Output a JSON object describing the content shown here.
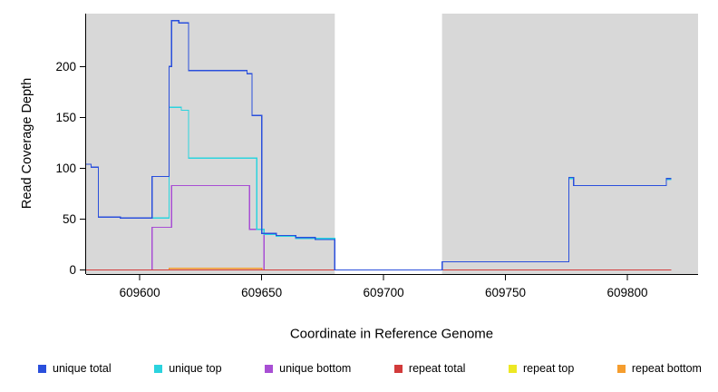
{
  "chart_data": {
    "type": "line",
    "title": "",
    "xlabel": "Coordinate in Reference Genome",
    "ylabel": "Read Coverage Depth",
    "plot_background": "#d8d8d8",
    "figure_background": "#ffffff",
    "axis_color": "#000000",
    "xlim": [
      609578,
      609829
    ],
    "ylim": [
      -4,
      252
    ],
    "xticks": [
      609600,
      609650,
      609700,
      609750,
      609800
    ],
    "yticks": [
      0,
      50,
      100,
      150,
      200
    ],
    "grid": "off",
    "legend_position": "bottom",
    "gap_region": {
      "x0": 609680,
      "x1": 609724,
      "color": "#ffffff"
    },
    "draw_order": [
      4,
      5,
      2,
      3,
      1,
      0
    ],
    "series": [
      {
        "name": "unique total",
        "color": "#2a4fdc",
        "points": [
          [
            609578,
            104
          ],
          [
            609580,
            104
          ],
          [
            609580,
            101
          ],
          [
            609583,
            101
          ],
          [
            609583,
            52
          ],
          [
            609592,
            52
          ],
          [
            609592,
            51
          ],
          [
            609605,
            51
          ],
          [
            609605,
            92
          ],
          [
            609612,
            92
          ],
          [
            609612,
            200
          ],
          [
            609613,
            200
          ],
          [
            609613,
            245
          ],
          [
            609616,
            245
          ],
          [
            609616,
            243
          ],
          [
            609620,
            243
          ],
          [
            609620,
            196
          ],
          [
            609644,
            196
          ],
          [
            609644,
            193
          ],
          [
            609646,
            193
          ],
          [
            609646,
            152
          ],
          [
            609650,
            152
          ],
          [
            609650,
            36
          ],
          [
            609656,
            36
          ],
          [
            609656,
            34
          ],
          [
            609664,
            34
          ],
          [
            609664,
            32
          ],
          [
            609672,
            32
          ],
          [
            609672,
            30
          ],
          [
            609680,
            30
          ],
          [
            609680,
            0
          ],
          [
            609724,
            0
          ],
          [
            609724,
            8
          ],
          [
            609776,
            8
          ],
          [
            609776,
            91
          ],
          [
            609778,
            91
          ],
          [
            609778,
            83
          ],
          [
            609816,
            83
          ],
          [
            609816,
            90
          ],
          [
            609818,
            90
          ]
        ]
      },
      {
        "name": "unique top",
        "color": "#2bd3de",
        "points": [
          [
            609578,
            104
          ],
          [
            609580,
            104
          ],
          [
            609580,
            101
          ],
          [
            609583,
            101
          ],
          [
            609583,
            52
          ],
          [
            609592,
            52
          ],
          [
            609592,
            51
          ],
          [
            609612,
            51
          ],
          [
            609612,
            160
          ],
          [
            609617,
            160
          ],
          [
            609617,
            157
          ],
          [
            609620,
            157
          ],
          [
            609620,
            110
          ],
          [
            609648,
            110
          ],
          [
            609648,
            40
          ],
          [
            609651,
            40
          ],
          [
            609651,
            35
          ],
          [
            609656,
            35
          ],
          [
            609656,
            33
          ],
          [
            609664,
            33
          ],
          [
            609664,
            31
          ],
          [
            609680,
            31
          ],
          [
            609680,
            0
          ],
          [
            609724,
            0
          ],
          [
            609724,
            8
          ],
          [
            609776,
            8
          ],
          [
            609776,
            90
          ],
          [
            609778,
            90
          ],
          [
            609778,
            83
          ],
          [
            609816,
            83
          ],
          [
            609816,
            89
          ],
          [
            609818,
            89
          ]
        ]
      },
      {
        "name": "unique bottom",
        "color": "#a84fd4",
        "points": [
          [
            609578,
            0
          ],
          [
            609605,
            0
          ],
          [
            609605,
            42
          ],
          [
            609613,
            42
          ],
          [
            609613,
            83
          ],
          [
            609645,
            83
          ],
          [
            609645,
            40
          ],
          [
            609651,
            40
          ],
          [
            609651,
            0
          ],
          [
            609818,
            0
          ]
        ]
      },
      {
        "name": "repeat total",
        "color": "#d23b3b",
        "points": [
          [
            609578,
            0
          ],
          [
            609818,
            0
          ]
        ]
      },
      {
        "name": "repeat top",
        "color": "#ede824",
        "points": [
          [
            609578,
            0
          ],
          [
            609818,
            0
          ]
        ]
      },
      {
        "name": "repeat bottom",
        "color": "#f59d2e",
        "points": [
          [
            609578,
            0
          ],
          [
            609612,
            0
          ],
          [
            609612,
            1.5
          ],
          [
            609650,
            1.5
          ],
          [
            609650,
            0
          ],
          [
            609818,
            0
          ]
        ]
      }
    ]
  }
}
